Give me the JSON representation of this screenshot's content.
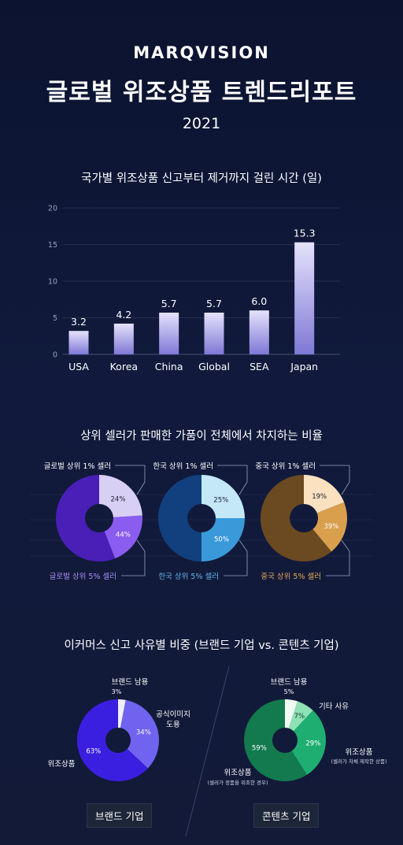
{
  "header": {
    "brand": "MARQVISION",
    "title": "글로벌 위조상품 트렌드리포트",
    "year": "2021"
  },
  "chart_data": [
    {
      "type": "bar",
      "title": "국가별 위조상품 신고부터 제거까지 걸린 시간 (일)",
      "categories": [
        "USA",
        "Korea",
        "China",
        "Global",
        "SEA",
        "Japan"
      ],
      "values": [
        3.2,
        4.2,
        5.7,
        5.7,
        6.0,
        15.3
      ],
      "value_labels": [
        "3.2",
        "4.2",
        "5.7",
        "5.7",
        "6.0",
        "15.3"
      ],
      "ylim": [
        0,
        20
      ],
      "yticks": [
        "0",
        "5",
        "10",
        "15",
        "20"
      ],
      "grid": true,
      "colors": {
        "bar_top": "#e4e2fb",
        "bar_bottom": "#7f78d6"
      }
    },
    {
      "type": "pie",
      "title": "상위 셀러가 판매한 가품이 전체에서 차지하는 비율",
      "donuts": [
        {
          "name": "global",
          "top_label": "글로벌 상위 1% 셀러",
          "bottom_label": "글로벌 상위 5% 셀러",
          "top1_percent": 24,
          "top5_percent": 44,
          "top1_text": "24%",
          "top5_text": "44%",
          "colors": {
            "top1": "#d8cff5",
            "top5": "#8a5cf0",
            "rest": "#4a1fb8"
          },
          "bottom_label_color": "#a98ef5"
        },
        {
          "name": "korea",
          "top_label": "한국 상위 1% 셀러",
          "bottom_label": "한국 상위 5% 셀러",
          "top1_percent": 25,
          "top5_percent": 50,
          "top1_text": "25%",
          "top5_text": "50%",
          "colors": {
            "top1": "#c4e8f8",
            "top5": "#3a9ad9",
            "rest": "#12407e"
          },
          "bottom_label_color": "#62b4ea"
        },
        {
          "name": "china",
          "top_label": "중국 상위 1% 셀러",
          "bottom_label": "중국 상위 5% 셀러",
          "top1_percent": 19,
          "top5_percent": 39,
          "top1_text": "19%",
          "top5_text": "39%",
          "colors": {
            "top1": "#fbe1c0",
            "top5": "#d99f4c",
            "rest": "#6b4a22"
          },
          "bottom_label_color": "#e8aa55"
        }
      ]
    },
    {
      "type": "pie",
      "title": "이커머스 신고 사유별 비중 (브랜드 기업 vs. 콘텐츠 기업)",
      "pies": [
        {
          "name": "brand-company",
          "company": "브랜드 기업",
          "slices": [
            {
              "label": "브랜드 남용",
              "value": 3,
              "text": "3%",
              "color": "#f0eefa"
            },
            {
              "label": "공식이미지\n도용",
              "value": 34,
              "text": "34%",
              "color": "#6f63f0"
            },
            {
              "label": "위조상품",
              "value": 63,
              "text": "63%",
              "color": "#3b1fe0"
            }
          ]
        },
        {
          "name": "content-company",
          "company": "콘텐츠 기업",
          "slices": [
            {
              "label": "브랜드 남용",
              "value": 5,
              "text": "5%",
              "color": "#effaf3"
            },
            {
              "label": "기타 사유",
              "value": 7,
              "text": "7%",
              "color": "#8ee2b4"
            },
            {
              "label": "위조상품",
              "sublabel": "(셀러가 자체 제작한 상품)",
              "value": 29,
              "text": "29%",
              "color": "#1fae72"
            },
            {
              "label": "위조상품",
              "sublabel": "(셀러가 정품을 위조한 경우)",
              "value": 59,
              "text": "59%",
              "color": "#137a4e"
            }
          ]
        }
      ]
    }
  ]
}
